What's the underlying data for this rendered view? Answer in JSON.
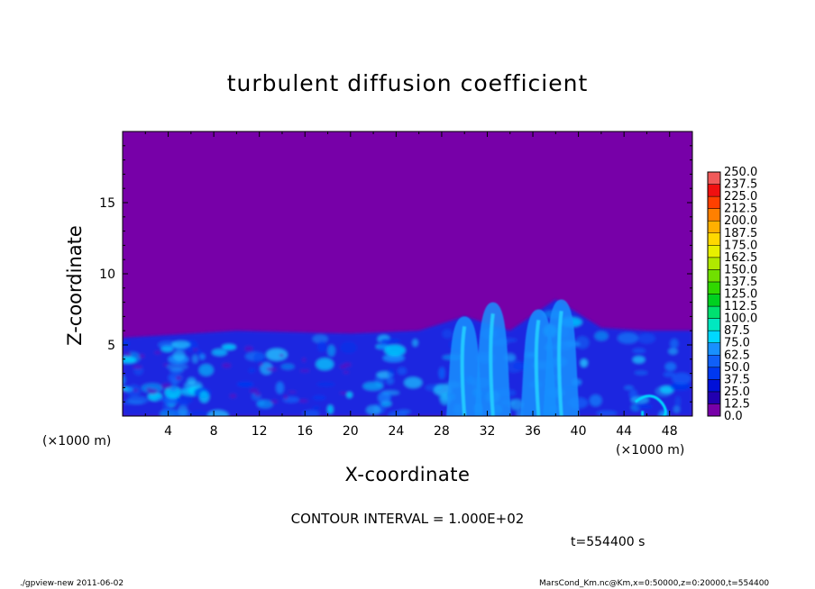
{
  "chart_data": {
    "type": "heatmap",
    "title": "turbulent diffusion coefficient",
    "xlabel": "X-coordinate",
    "ylabel": "Z-coordinate",
    "x_unit": "(×1000 m)",
    "xlim": [
      0,
      50
    ],
    "ylim": [
      0,
      20
    ],
    "x_ticks": [
      4,
      8,
      12,
      16,
      20,
      24,
      28,
      32,
      36,
      40,
      44,
      48
    ],
    "y_ticks": [
      5,
      10,
      15
    ],
    "colorbar": {
      "levels": [
        0.0,
        12.5,
        25.0,
        37.5,
        50.0,
        62.5,
        75.0,
        87.5,
        100.0,
        112.5,
        125.0,
        137.5,
        150.0,
        162.5,
        175.0,
        187.5,
        200.0,
        212.5,
        225.0,
        237.5,
        250.0
      ],
      "labels": [
        "0.0",
        "12.5",
        "25.0",
        "37.5",
        "50.0",
        "62.5",
        "75.0",
        "87.5",
        "100.0",
        "112.5",
        "125.0",
        "137.5",
        "150.0",
        "162.5",
        "175.0",
        "187.5",
        "200.0",
        "212.5",
        "225.0",
        "237.5",
        "250.0"
      ],
      "colors": [
        "#7700a8",
        "#2200b0",
        "#0010d8",
        "#0038f0",
        "#1060f8",
        "#1890ff",
        "#00d8ff",
        "#00e8c0",
        "#00e070",
        "#00d020",
        "#30d800",
        "#70e000",
        "#b0e800",
        "#e8f000",
        "#ffd800",
        "#ffb000",
        "#ff8000",
        "#ff4000",
        "#f01010",
        "#f05a5a"
      ]
    },
    "features": [
      {
        "name": "boundary-layer-top",
        "x": [
          0,
          10,
          20,
          26,
          30,
          34,
          38,
          42,
          46,
          50
        ],
        "z": [
          5.5,
          6.0,
          5.8,
          6.0,
          7.0,
          6.0,
          8.2,
          6.2,
          6.0,
          6.0
        ]
      },
      {
        "name": "plumes",
        "x": [
          30,
          32.5,
          36.5,
          38.5
        ],
        "z_top": [
          7.0,
          8.0,
          7.5,
          8.2
        ]
      }
    ]
  },
  "annotations": {
    "contour_interval": "CONTOUR INTERVAL = 1.000E+02",
    "time": "t=554400 s",
    "footer_left": "./gpview-new  2011-06-02",
    "footer_right": "MarsCond_Km.nc@Km,x=0:50000,z=0:20000,t=554400"
  },
  "colors": {
    "background_field": "#7700a8",
    "low_turbulence": "#1a28e0",
    "high_turbulence": "#22c8ff"
  }
}
